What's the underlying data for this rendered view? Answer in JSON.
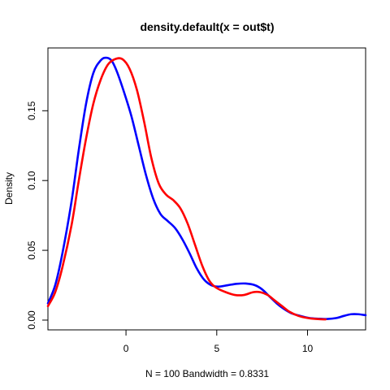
{
  "chart_data": {
    "type": "line",
    "title": "density.default(x = out$t)",
    "xlabel": "N = 100   Bandwidth = 0.8331",
    "ylabel": "Density",
    "xlim": [
      -4.3,
      13.2
    ],
    "ylim": [
      -0.007,
      0.195
    ],
    "x_ticks": [
      0,
      5,
      10
    ],
    "x_tick_labels": [
      "0",
      "5",
      "10"
    ],
    "y_ticks": [
      0.0,
      0.05,
      0.1,
      0.15
    ],
    "y_tick_labels": [
      "0.00",
      "0.05",
      "0.10",
      "0.15"
    ],
    "grid": false,
    "series": [
      {
        "color": "#0000ff",
        "points": [
          [
            -4.3,
            0.012
          ],
          [
            -3.9,
            0.025
          ],
          [
            -3.5,
            0.048
          ],
          [
            -3.0,
            0.085
          ],
          [
            -2.6,
            0.122
          ],
          [
            -2.2,
            0.155
          ],
          [
            -1.8,
            0.177
          ],
          [
            -1.4,
            0.186
          ],
          [
            -1.1,
            0.188
          ],
          [
            -0.8,
            0.186
          ],
          [
            -0.5,
            0.178
          ],
          [
            -0.1,
            0.163
          ],
          [
            0.3,
            0.146
          ],
          [
            0.7,
            0.125
          ],
          [
            1.1,
            0.104
          ],
          [
            1.5,
            0.087
          ],
          [
            1.9,
            0.076
          ],
          [
            2.3,
            0.071
          ],
          [
            2.7,
            0.066
          ],
          [
            3.1,
            0.058
          ],
          [
            3.5,
            0.048
          ],
          [
            3.9,
            0.037
          ],
          [
            4.3,
            0.029
          ],
          [
            4.7,
            0.025
          ],
          [
            5.1,
            0.024
          ],
          [
            5.6,
            0.025
          ],
          [
            6.1,
            0.026
          ],
          [
            6.6,
            0.0262
          ],
          [
            7.1,
            0.025
          ],
          [
            7.5,
            0.022
          ],
          [
            7.9,
            0.017
          ],
          [
            8.3,
            0.012
          ],
          [
            8.7,
            0.008
          ],
          [
            9.1,
            0.005
          ],
          [
            9.6,
            0.003
          ],
          [
            10.1,
            0.0015
          ],
          [
            10.6,
            0.001
          ],
          [
            11.1,
            0.0008
          ],
          [
            11.6,
            0.0015
          ],
          [
            12.0,
            0.003
          ],
          [
            12.4,
            0.0042
          ],
          [
            12.8,
            0.0042
          ],
          [
            13.2,
            0.0035
          ]
        ]
      },
      {
        "color": "#ff0000",
        "points": [
          [
            -4.3,
            0.01
          ],
          [
            -3.9,
            0.02
          ],
          [
            -3.5,
            0.038
          ],
          [
            -3.0,
            0.068
          ],
          [
            -2.6,
            0.1
          ],
          [
            -2.2,
            0.13
          ],
          [
            -1.8,
            0.155
          ],
          [
            -1.4,
            0.172
          ],
          [
            -1.0,
            0.183
          ],
          [
            -0.6,
            0.187
          ],
          [
            -0.2,
            0.187
          ],
          [
            0.2,
            0.18
          ],
          [
            0.6,
            0.165
          ],
          [
            1.0,
            0.142
          ],
          [
            1.4,
            0.116
          ],
          [
            1.8,
            0.098
          ],
          [
            2.2,
            0.09
          ],
          [
            2.6,
            0.086
          ],
          [
            3.0,
            0.08
          ],
          [
            3.4,
            0.069
          ],
          [
            3.8,
            0.054
          ],
          [
            4.2,
            0.039
          ],
          [
            4.6,
            0.028
          ],
          [
            5.0,
            0.023
          ],
          [
            5.5,
            0.02
          ],
          [
            6.0,
            0.018
          ],
          [
            6.5,
            0.018
          ],
          [
            7.0,
            0.02
          ],
          [
            7.4,
            0.02
          ],
          [
            7.8,
            0.018
          ],
          [
            8.2,
            0.014
          ],
          [
            8.6,
            0.01
          ],
          [
            9.0,
            0.006
          ],
          [
            9.5,
            0.003
          ],
          [
            10.0,
            0.0015
          ],
          [
            10.5,
            0.0008
          ],
          [
            11.0,
            0.0005
          ]
        ]
      }
    ]
  }
}
